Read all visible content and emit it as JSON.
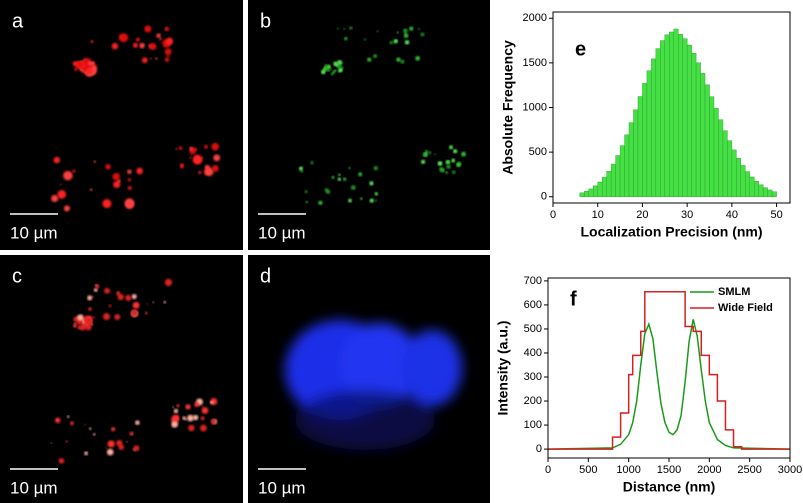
{
  "panels": [
    {
      "label": "a",
      "scale_bar": "10 µm"
    },
    {
      "label": "b",
      "scale_bar": "10 µm"
    },
    {
      "label": "c",
      "scale_bar": "10 µm"
    },
    {
      "label": "d",
      "scale_bar": "10 µm"
    }
  ],
  "chart_data": [
    {
      "type": "histogram",
      "annotation": "e",
      "x_label": "Localization Precision (nm)",
      "y_label": "Absolute Frequency",
      "color": "#44e044",
      "bins": [
        6,
        7,
        8,
        9,
        10,
        11,
        12,
        13,
        14,
        15,
        16,
        17,
        18,
        19,
        20,
        21,
        22,
        23,
        24,
        25,
        26,
        27,
        28,
        29,
        30,
        31,
        32,
        33,
        34,
        35,
        36,
        37,
        38,
        39,
        40,
        41,
        42,
        43,
        44,
        45,
        46,
        47,
        48,
        49,
        50
      ],
      "values": [
        44,
        63,
        88,
        122,
        165,
        220,
        285,
        366,
        462,
        573,
        694,
        831,
        975,
        1123,
        1270,
        1413,
        1545,
        1660,
        1750,
        1814,
        1846,
        1880,
        1821,
        1772,
        1700,
        1608,
        1501,
        1382,
        1254,
        1122,
        990,
        863,
        741,
        629,
        525,
        432,
        351,
        282,
        222,
        174,
        134,
        101,
        76,
        56
      ],
      "xlim": [
        0,
        53
      ],
      "xticks": [
        0,
        10,
        20,
        30,
        40,
        50
      ],
      "ylim": [
        -70,
        2070
      ],
      "yticks": [
        0,
        500,
        1000,
        1500,
        2000
      ]
    },
    {
      "type": "line",
      "annotation": "f",
      "x_label": "Distance (nm)",
      "y_label": "Intensity (a.u.)",
      "legend": "upper right",
      "series": [
        {
          "name": "SMLM",
          "color": "#1a9a1a",
          "x": [
            0,
            800,
            900,
            1000,
            1050,
            1100,
            1150,
            1200,
            1250,
            1300,
            1350,
            1400,
            1450,
            1500,
            1550,
            1600,
            1650,
            1700,
            1750,
            1800,
            1850,
            1900,
            1950,
            2000,
            2100,
            2200,
            2300,
            3000
          ],
          "values": [
            0,
            5,
            20,
            60,
            110,
            200,
            350,
            480,
            520,
            460,
            320,
            190,
            110,
            70,
            60,
            80,
            140,
            280,
            450,
            540,
            470,
            330,
            200,
            110,
            40,
            15,
            5,
            0
          ]
        },
        {
          "name": "Wide Field",
          "color": "#d42020",
          "x": [
            0,
            800,
            800,
            900,
            900,
            1000,
            1000,
            1050,
            1050,
            1150,
            1150,
            1200,
            1200,
            1700,
            1700,
            1800,
            1800,
            1900,
            1900,
            2000,
            2000,
            2100,
            2100,
            2200,
            2200,
            2300,
            2300,
            2400,
            2400,
            3000
          ],
          "values": [
            0,
            0,
            50,
            50,
            150,
            150,
            310,
            310,
            390,
            390,
            490,
            490,
            655,
            655,
            510,
            510,
            490,
            490,
            390,
            390,
            310,
            310,
            200,
            200,
            80,
            80,
            10,
            10,
            0,
            0
          ]
        }
      ],
      "xlim": [
        0,
        3000
      ],
      "xticks": [
        0,
        500,
        1000,
        1500,
        2000,
        2500,
        3000
      ],
      "ylim": [
        -37,
        712
      ],
      "yticks": [
        0,
        100,
        200,
        300,
        400,
        500,
        600,
        700
      ]
    }
  ]
}
